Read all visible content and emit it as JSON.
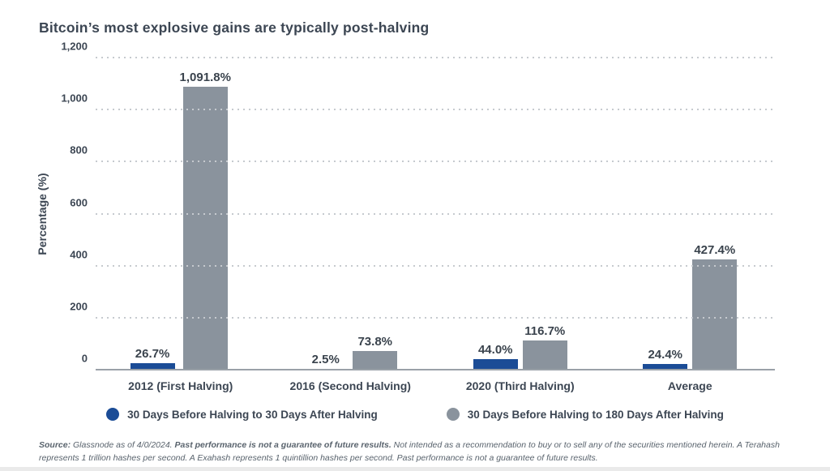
{
  "title": "Bitcoin’s most explosive gains are typically post-halving",
  "chart_data": {
    "type": "bar",
    "title": "Bitcoin’s most explosive gains are typically post-halving",
    "categories": [
      "2012 (First Halving)",
      "2016 (Second Halving)",
      "2020 (Third Halving)",
      "Average"
    ],
    "series": [
      {
        "name": "30 Days Before Halving to 30 Days After Halving",
        "color": "#1b4c96",
        "values": [
          26.7,
          2.5,
          44.0,
          24.4
        ],
        "labels": [
          "26.7%",
          "2.5%",
          "44.0%",
          "24.4%"
        ]
      },
      {
        "name": "30 Days Before Halving to 180 Days After Halving",
        "color": "#8a939d",
        "values": [
          1091.8,
          73.8,
          116.7,
          427.4
        ],
        "labels": [
          "1,091.8%",
          "73.8%",
          "116.7%",
          "427.4%"
        ]
      }
    ],
    "xlabel": "",
    "ylabel": "Percentage (%)",
    "ylim": [
      0,
      1200
    ],
    "yticks": [
      0,
      200,
      400,
      600,
      800,
      1000,
      1200
    ],
    "ytick_labels": [
      "0",
      "200",
      "400",
      "600",
      "800",
      "1,000",
      "1,200"
    ],
    "grid": "horizontal-dotted",
    "legend_position": "bottom"
  },
  "colors": {
    "series_blue": "#1b4c96",
    "series_gray": "#8a939d",
    "text_dark": "#3c4653",
    "gridline": "#c6cacf",
    "baseline": "#9aa1a8",
    "footer_text": "#59636d"
  },
  "footer": {
    "source_label": "Source:",
    "text_1": " Glassnode as of 4/0/2024. ",
    "bold_text": "Past performance is not a guarantee of future results.",
    "text_2": " Not intended as a recommendation to buy or to sell any of the securities mentioned herein. A Terahash represents 1 trillion hashes per second. A Exahash represents 1 quintillion hashes per second. Past performance is not a guarantee of future results."
  }
}
